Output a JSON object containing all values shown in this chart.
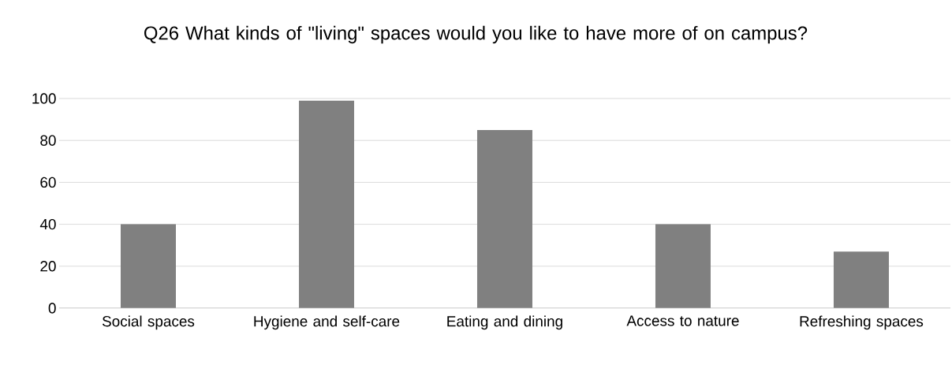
{
  "chart_data": {
    "type": "bar",
    "title": "Q26 What kinds of \"living\" spaces would you like to have more of on campus?",
    "categories": [
      "Social spaces",
      "Hygiene and self-care",
      "Eating and dining",
      "Access to nature",
      "Refreshing spaces"
    ],
    "values": [
      40,
      99,
      85,
      40,
      27
    ],
    "color": "#808080",
    "ylim": [
      0,
      100
    ],
    "yticks": [
      0,
      20,
      40,
      60,
      80,
      100
    ],
    "grid": "y"
  }
}
